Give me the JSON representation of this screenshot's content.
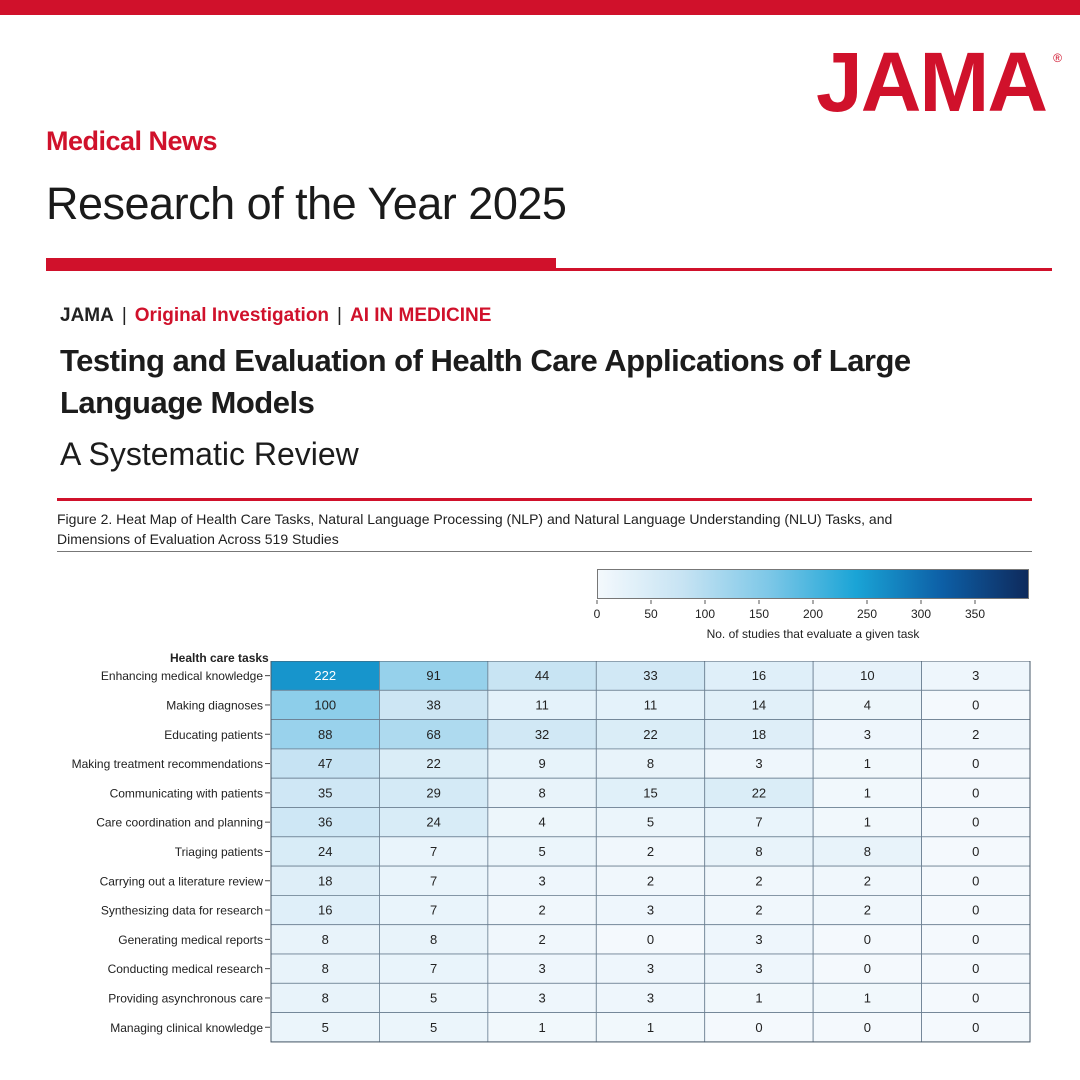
{
  "brand": {
    "logo_text": "JAMA",
    "registered_mark": "®",
    "brand_red": "#d0112b",
    "dark_navy": "#0e2a5c"
  },
  "header": {
    "section_label": "Medical News",
    "headline": "Research of the Year 2025"
  },
  "article": {
    "journal": "JAMA",
    "separator": "|",
    "article_type": "Original Investigation",
    "topic": "AI IN MEDICINE",
    "title": "Testing and Evaluation of Health Care Applications of Large Language Models",
    "subtitle": "A Systematic Review"
  },
  "figure": {
    "caption": "Figure 2. Heat Map of Health Care Tasks, Natural Language Processing (NLP) and Natural Language Understanding (NLU) Tasks, and Dimensions of Evaluation Across 519 Studies"
  },
  "chart_data": {
    "type": "heatmap",
    "row_header": "Health care tasks",
    "rows": [
      "Enhancing medical knowledge",
      "Making diagnoses",
      "Educating patients",
      "Making treatment recommendations",
      "Communicating with patients",
      "Care coordination and planning",
      "Triaging patients",
      "Carrying out a literature review",
      "Synthesizing data for research",
      "Generating medical reports",
      "Conducting medical research",
      "Providing asynchronous care",
      "Managing clinical knowledge"
    ],
    "values": [
      [
        222,
        91,
        44,
        33,
        16,
        10,
        3
      ],
      [
        100,
        38,
        11,
        11,
        14,
        4,
        0
      ],
      [
        88,
        68,
        32,
        22,
        18,
        3,
        2
      ],
      [
        47,
        22,
        9,
        8,
        3,
        1,
        0
      ],
      [
        35,
        29,
        8,
        15,
        22,
        1,
        0
      ],
      [
        36,
        24,
        4,
        5,
        7,
        1,
        0
      ],
      [
        24,
        7,
        5,
        2,
        8,
        8,
        0
      ],
      [
        18,
        7,
        3,
        2,
        2,
        2,
        0
      ],
      [
        16,
        7,
        2,
        3,
        2,
        2,
        0
      ],
      [
        8,
        8,
        2,
        0,
        3,
        0,
        0
      ],
      [
        8,
        7,
        3,
        3,
        3,
        0,
        0
      ],
      [
        8,
        5,
        3,
        3,
        1,
        1,
        0
      ],
      [
        5,
        5,
        1,
        1,
        0,
        0,
        0
      ]
    ],
    "colorbar": {
      "min": 0,
      "max": 400,
      "ticks": [
        0,
        50,
        100,
        150,
        200,
        250,
        300,
        350
      ],
      "label": "No. of studies that evaluate a given task",
      "stops": [
        "#f4f9fd",
        "#c6e3f3",
        "#7cc7e7",
        "#1aa4d6",
        "#0d5fa6",
        "#0e2a5c"
      ]
    }
  }
}
